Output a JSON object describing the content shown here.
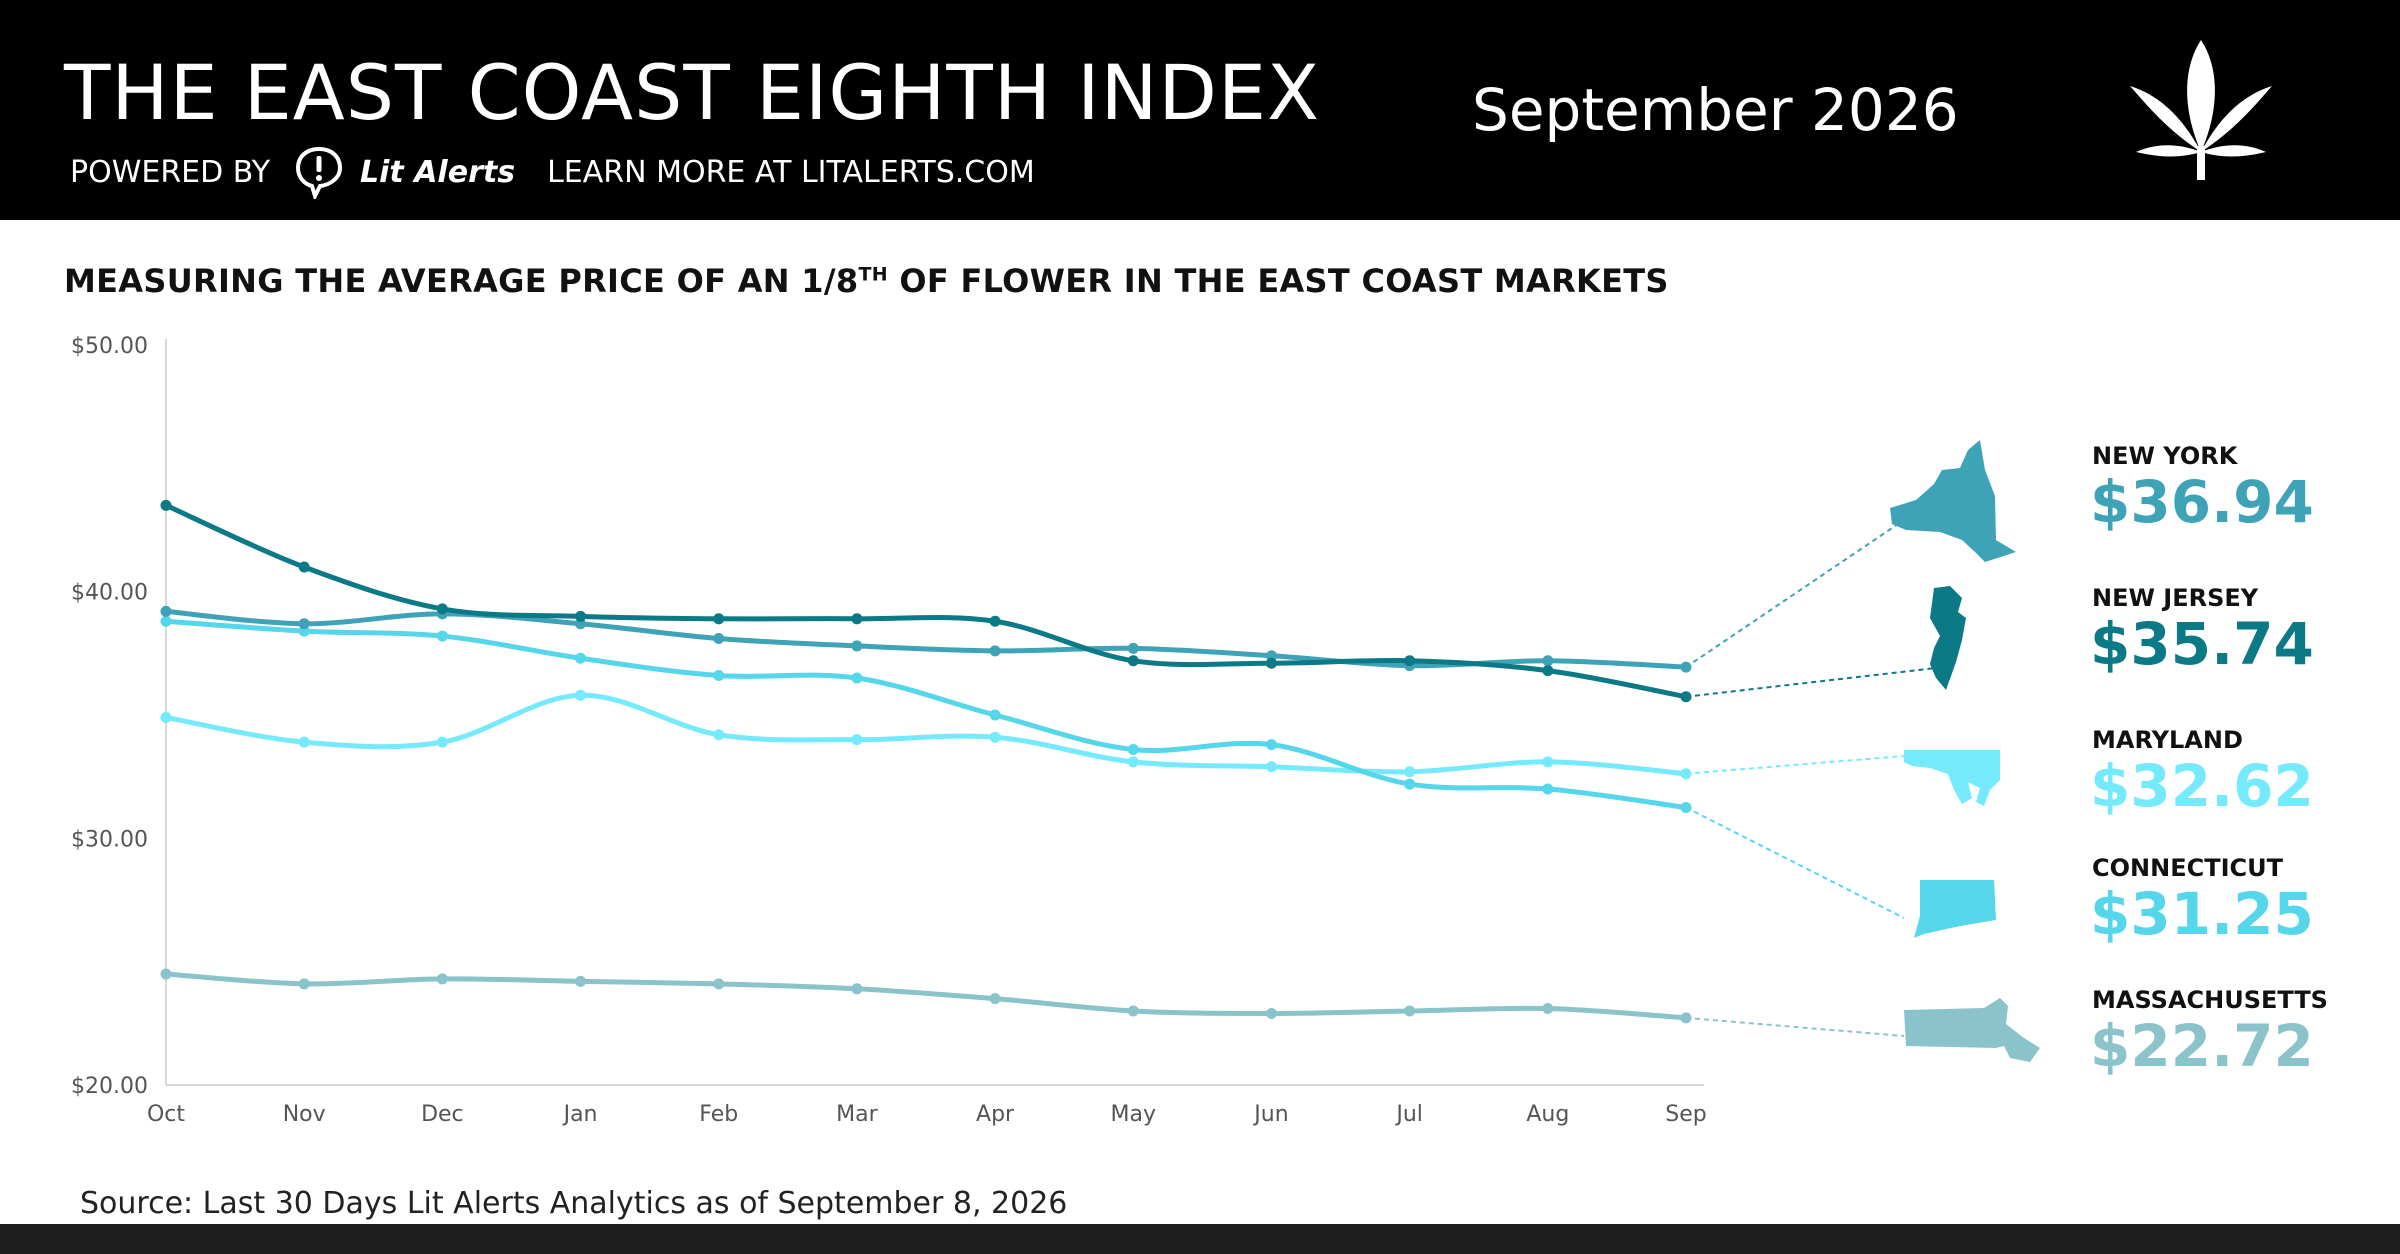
{
  "header": {
    "title": "THE EAST COAST EIGHTH INDEX",
    "powered_by": "POWERED BY",
    "brand": "Lit Alerts",
    "learn_more": "LEARN MORE AT LITALERTS.COM",
    "period": "September 2026",
    "logo_icon": "cannabis-leaf-icon",
    "brand_icon": "exclamation-bubble-icon"
  },
  "subtitle": {
    "prefix": "MEASURING THE AVERAGE PRICE OF AN 1/8",
    "sup": "TH",
    "suffix": " OF FLOWER IN THE EAST COAST MARKETS"
  },
  "chart_data": {
    "type": "line",
    "x": [
      "Oct",
      "Nov",
      "Dec",
      "Jan",
      "Feb",
      "Mar",
      "Apr",
      "May",
      "Jun",
      "Jul",
      "Aug",
      "Sep"
    ],
    "yticks": [
      "$20.00",
      "$30.00",
      "$40.00",
      "$50.00"
    ],
    "ylim": [
      20,
      50
    ],
    "grid": false,
    "series": [
      {
        "name": "NEW YORK",
        "price": "$36.94",
        "color": "#3fa3b8",
        "values": [
          39.2,
          38.7,
          39.1,
          38.7,
          38.1,
          37.8,
          37.6,
          37.7,
          37.4,
          37.0,
          37.2,
          36.94
        ]
      },
      {
        "name": "NEW JERSEY",
        "price": "$35.74",
        "color": "#0b7a86",
        "values": [
          43.5,
          41.0,
          39.3,
          39.0,
          38.9,
          38.9,
          38.8,
          37.2,
          37.1,
          37.2,
          36.8,
          35.74
        ]
      },
      {
        "name": "MARYLAND",
        "price": "$32.62",
        "color": "#74eafc",
        "values": [
          34.9,
          33.9,
          33.9,
          35.8,
          34.2,
          34.0,
          34.1,
          33.1,
          32.9,
          32.7,
          33.1,
          32.62
        ]
      },
      {
        "name": "CONNECTICUT",
        "price": "$31.25",
        "color": "#56d6ea",
        "values": [
          38.8,
          38.4,
          38.2,
          37.3,
          36.6,
          36.5,
          35.0,
          33.6,
          33.8,
          32.2,
          32.0,
          31.25
        ]
      },
      {
        "name": "MASSACHUSETTS",
        "price": "$22.72",
        "color": "#8bc3cb",
        "values": [
          24.5,
          24.1,
          24.3,
          24.2,
          24.1,
          23.9,
          23.5,
          23.0,
          22.9,
          23.0,
          23.1,
          22.72
        ]
      }
    ]
  },
  "source": "Source: Last 30 Days Lit Alerts Analytics as of September 8, 2026"
}
